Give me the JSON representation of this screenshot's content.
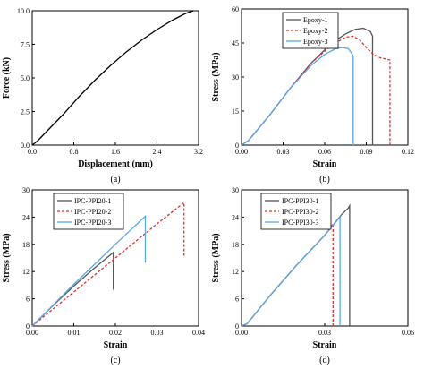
{
  "chart_data": [
    {
      "type": "line",
      "caption": "(a)",
      "xlabel": "Displacement (mm)",
      "ylabel": "Force (kN)",
      "xlim": [
        0.0,
        3.2
      ],
      "ylim": [
        0.0,
        10.0
      ],
      "x_ticks": [
        "0.0",
        "0.8",
        "1.6",
        "2.4",
        "3.2"
      ],
      "y_ticks": [
        "0.0",
        "2.5",
        "5.0",
        "7.5",
        "10.0"
      ],
      "x_tick_values": [
        0.0,
        0.8,
        1.6,
        2.4,
        3.2
      ],
      "y_tick_values": [
        0.0,
        2.5,
        5.0,
        7.5,
        10.0
      ],
      "legend": "none",
      "series": [
        {
          "color": "#000000",
          "dash": "none",
          "x": [
            0.0,
            0.1,
            0.3,
            0.6,
            0.9,
            1.2,
            1.5,
            1.8,
            2.1,
            2.4,
            2.7,
            2.95,
            3.1
          ],
          "y": [
            0.0,
            0.3,
            1.1,
            2.3,
            3.6,
            4.8,
            5.9,
            6.9,
            7.8,
            8.6,
            9.3,
            9.8,
            10.0
          ]
        }
      ]
    },
    {
      "type": "line",
      "caption": "(b)",
      "xlabel": "Strain",
      "ylabel": "Stress (MPa)",
      "xlim": [
        0.0,
        0.12
      ],
      "ylim": [
        0,
        60
      ],
      "x_ticks": [
        "0.00",
        "0.03",
        "0.06",
        "0.09",
        "0.12"
      ],
      "y_ticks": [
        "0",
        "15",
        "30",
        "45",
        "60"
      ],
      "x_tick_values": [
        0.0,
        0.03,
        0.06,
        0.09,
        0.12
      ],
      "y_tick_values": [
        0,
        15,
        30,
        45,
        60
      ],
      "legend": "top-right",
      "series": [
        {
          "name": "Epoxy-1",
          "color": "#555555",
          "dash": "none",
          "x": [
            0.0,
            0.005,
            0.02,
            0.035,
            0.05,
            0.065,
            0.075,
            0.082,
            0.088,
            0.093,
            0.0945,
            0.0945
          ],
          "y": [
            0,
            2,
            13,
            25,
            36,
            45,
            49,
            51,
            51.5,
            50,
            48,
            0
          ]
        },
        {
          "name": "Epoxy-2",
          "color": "#e03030",
          "dash": "3,2",
          "x": [
            0.0,
            0.005,
            0.02,
            0.035,
            0.05,
            0.065,
            0.075,
            0.08,
            0.085,
            0.09,
            0.095,
            0.1,
            0.107,
            0.107
          ],
          "y": [
            0,
            2,
            13,
            25,
            36,
            44,
            47.5,
            48,
            46.5,
            43,
            40,
            38.5,
            37.5,
            0
          ]
        },
        {
          "name": "Epoxy-3",
          "color": "#58a8ea",
          "dash": "none",
          "x": [
            0.0,
            0.005,
            0.02,
            0.035,
            0.05,
            0.06,
            0.068,
            0.073,
            0.077,
            0.08,
            0.0805,
            0.0805
          ],
          "y": [
            0,
            2,
            13,
            25,
            35,
            40,
            42.5,
            43,
            42.5,
            40,
            39,
            0
          ]
        }
      ]
    },
    {
      "type": "line",
      "caption": "(c)",
      "xlabel": "Strain",
      "ylabel": "Stress (MPa)",
      "xlim": [
        0.0,
        0.04
      ],
      "ylim": [
        0,
        30
      ],
      "x_ticks": [
        "0.00",
        "0.01",
        "0.02",
        "0.03",
        "0.04"
      ],
      "y_ticks": [
        "0",
        "6",
        "12",
        "18",
        "24",
        "30"
      ],
      "x_tick_values": [
        0.0,
        0.01,
        0.02,
        0.03,
        0.04
      ],
      "y_tick_values": [
        0,
        6,
        12,
        18,
        24,
        30
      ],
      "legend": "top-left",
      "series": [
        {
          "name": "IPC-PPI20-1",
          "color": "#555555",
          "dash": "none",
          "x": [
            0.0,
            0.005,
            0.01,
            0.015,
            0.0195,
            0.0195,
            0.0195
          ],
          "y": [
            0,
            4.5,
            8.8,
            12.8,
            16.2,
            8.0,
            8.0
          ]
        },
        {
          "name": "IPC-PPI20-2",
          "color": "#e03030",
          "dash": "3,2",
          "x": [
            0.0,
            0.01,
            0.02,
            0.03,
            0.0365,
            0.0365
          ],
          "y": [
            0,
            7.5,
            15,
            22.5,
            27.2,
            15.5
          ]
        },
        {
          "name": "IPC-PPI20-3",
          "color": "#58a8ea",
          "dash": "none",
          "x": [
            0.0,
            0.005,
            0.01,
            0.015,
            0.02,
            0.0272,
            0.0272
          ],
          "y": [
            0,
            4.6,
            9.2,
            13.6,
            18,
            24.2,
            14.0
          ]
        }
      ]
    },
    {
      "type": "line",
      "caption": "(d)",
      "xlabel": "Strain",
      "ylabel": "Stress (MPa)",
      "xlim": [
        0.0,
        0.06
      ],
      "ylim": [
        0,
        30
      ],
      "x_ticks": [
        "0.00",
        "0.03",
        "0.06"
      ],
      "y_ticks": [
        "0",
        "6",
        "12",
        "18",
        "24",
        "30"
      ],
      "x_tick_values": [
        0.0,
        0.03,
        0.06
      ],
      "y_tick_values": [
        0,
        6,
        12,
        18,
        24,
        30
      ],
      "legend": "top-left",
      "series": [
        {
          "name": "IPC-PPI30-1",
          "color": "#555555",
          "dash": "none",
          "x": [
            0.0,
            0.002,
            0.01,
            0.02,
            0.03,
            0.036,
            0.0385,
            0.039,
            0.039
          ],
          "y": [
            0,
            0.5,
            6.5,
            13.5,
            20,
            24.5,
            26,
            26.5,
            0
          ]
        },
        {
          "name": "IPC-PPI30-2",
          "color": "#e03030",
          "dash": "3,2",
          "x": [
            0.0,
            0.002,
            0.01,
            0.02,
            0.03,
            0.033,
            0.033
          ],
          "y": [
            0,
            0.5,
            6.5,
            13.5,
            20,
            22.5,
            0
          ]
        },
        {
          "name": "IPC-PPI30-3",
          "color": "#58a8ea",
          "dash": "none",
          "x": [
            0.0,
            0.002,
            0.01,
            0.02,
            0.03,
            0.0355,
            0.0355
          ],
          "y": [
            0,
            0.5,
            6.5,
            13.5,
            20,
            24,
            0
          ]
        }
      ]
    }
  ]
}
